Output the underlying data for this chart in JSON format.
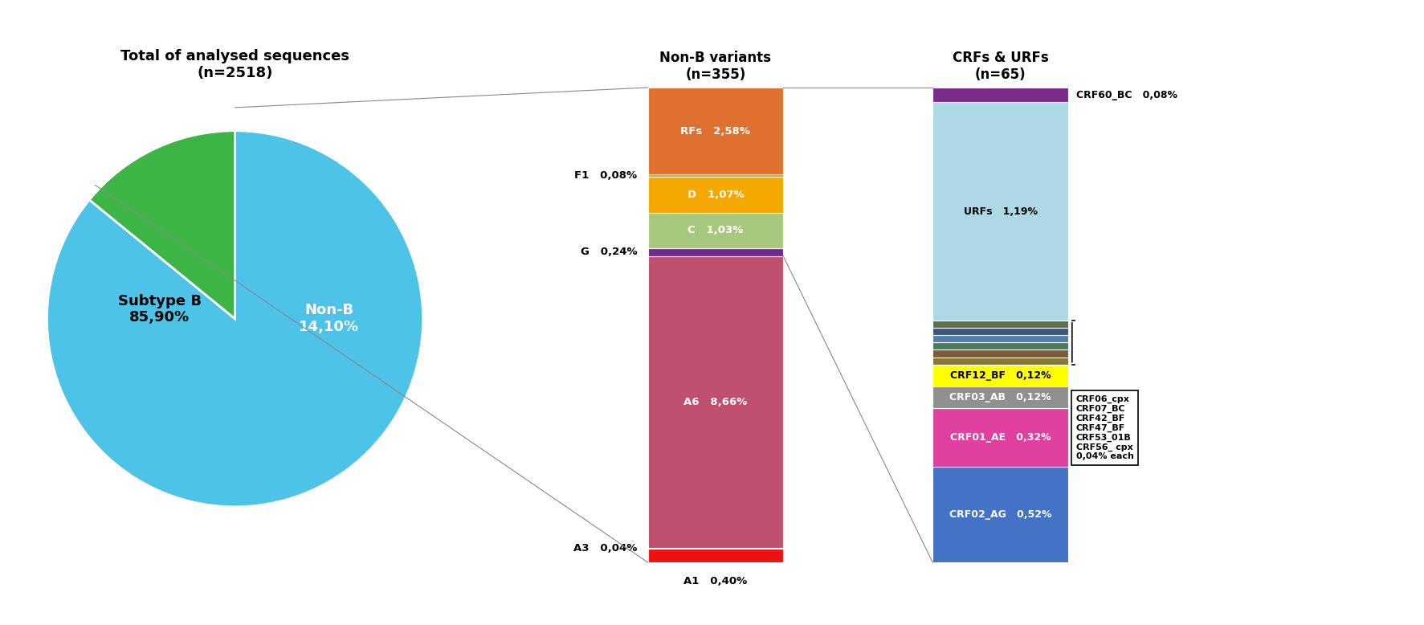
{
  "pie_values": [
    85.9,
    14.1
  ],
  "pie_colors": [
    "#4DC3E8",
    "#3CB544"
  ],
  "pie_title": "Total of analysed sequences\n(n=2518)",
  "pie_label_B": "Subtype B\n85,90%",
  "pie_label_NonB": "Non-B\n14,10%",
  "bar1_title": "Non-B variants\n(n=355)",
  "bar1_segments": [
    {
      "label": "A1",
      "pct": 0.4,
      "color": "#EE1111",
      "text_color": "white",
      "show_inside": false,
      "pct_str": "0,40%"
    },
    {
      "label": "A3",
      "pct": 0.04,
      "color": "#AA0000",
      "text_color": "black",
      "show_inside": false,
      "pct_str": "0,04%"
    },
    {
      "label": "A6",
      "pct": 8.66,
      "color": "#C05070",
      "text_color": "white",
      "show_inside": true,
      "pct_str": "8,66%"
    },
    {
      "label": "G",
      "pct": 0.24,
      "color": "#6B2D8B",
      "text_color": "white",
      "show_inside": false,
      "pct_str": "0,24%"
    },
    {
      "label": "C",
      "pct": 1.03,
      "color": "#A8C880",
      "text_color": "white",
      "show_inside": true,
      "pct_str": "1,03%"
    },
    {
      "label": "D",
      "pct": 1.07,
      "color": "#F5A800",
      "text_color": "white",
      "show_inside": true,
      "pct_str": "1,07%"
    },
    {
      "label": "F1",
      "pct": 0.08,
      "color": "#D4A030",
      "text_color": "black",
      "show_inside": false,
      "pct_str": "0,08%"
    },
    {
      "label": "RFs",
      "pct": 2.58,
      "color": "#E07030",
      "text_color": "white",
      "show_inside": true,
      "pct_str": "2,58%"
    }
  ],
  "bar2_title": "CRFs & URFs\n(n=65)",
  "bar2_segments": [
    {
      "label": "CRF02_AG",
      "pct": 0.52,
      "color": "#4472C4",
      "text_color": "white",
      "show_inside": true,
      "pct_str": "0,52%"
    },
    {
      "label": "CRF01_AE",
      "pct": 0.32,
      "color": "#E040A0",
      "text_color": "white",
      "show_inside": true,
      "pct_str": "0,32%"
    },
    {
      "label": "CRF03_AB",
      "pct": 0.12,
      "color": "#909090",
      "text_color": "white",
      "show_inside": true,
      "pct_str": "0,12%"
    },
    {
      "label": "CRF12_BF",
      "pct": 0.12,
      "color": "#FFFF00",
      "text_color": "black",
      "show_inside": true,
      "pct_str": "0,12%"
    },
    {
      "label": "CRF06_cpx",
      "pct": 0.04,
      "color": "#887730",
      "text_color": "white",
      "show_inside": false,
      "pct_str": ""
    },
    {
      "label": "CRF07_BC",
      "pct": 0.04,
      "color": "#7B5B3A",
      "text_color": "white",
      "show_inside": false,
      "pct_str": ""
    },
    {
      "label": "CRF42_BF",
      "pct": 0.04,
      "color": "#4A7A60",
      "text_color": "white",
      "show_inside": false,
      "pct_str": ""
    },
    {
      "label": "CRF47_BF",
      "pct": 0.04,
      "color": "#5080A8",
      "text_color": "white",
      "show_inside": false,
      "pct_str": ""
    },
    {
      "label": "CRF53_01B",
      "pct": 0.04,
      "color": "#3A5878",
      "text_color": "white",
      "show_inside": false,
      "pct_str": ""
    },
    {
      "label": "CRF56_cpx",
      "pct": 0.04,
      "color": "#607050",
      "text_color": "white",
      "show_inside": false,
      "pct_str": ""
    },
    {
      "label": "URFs",
      "pct": 1.19,
      "color": "#ADD8E6",
      "text_color": "black",
      "show_inside": true,
      "pct_str": "1,19%"
    },
    {
      "label": "CRF60_BC",
      "pct": 0.08,
      "color": "#7B2D8B",
      "text_color": "white",
      "show_inside": false,
      "pct_str": "0,08%"
    }
  ],
  "legend_labels": [
    "CRF06_cpx",
    "CRF07_BC",
    "CRF42_BF",
    "CRF47_BF",
    "CRF53_01B",
    "CRF56_ cpx",
    "0,04% each"
  ],
  "background_color": "#ffffff"
}
